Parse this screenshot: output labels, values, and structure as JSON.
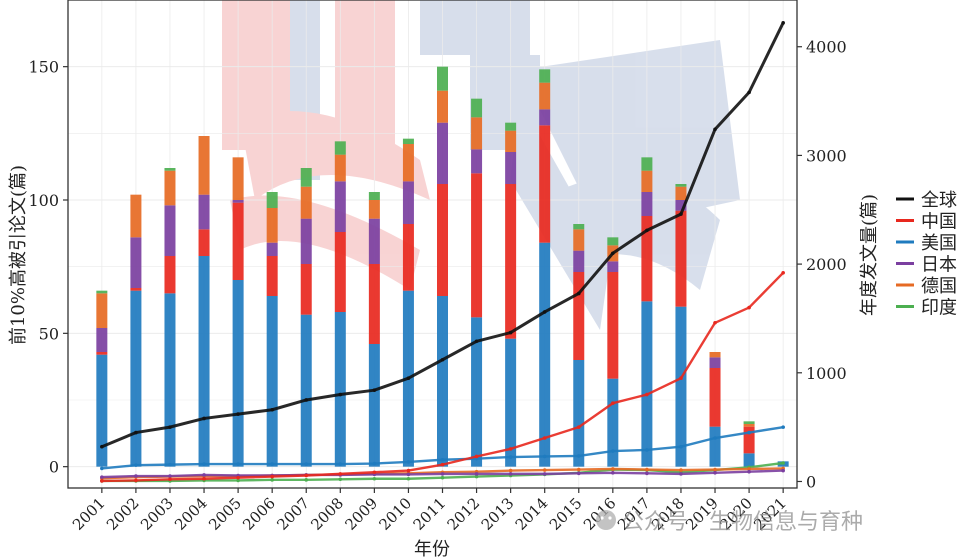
{
  "chart_data": {
    "type": "bar+line",
    "xlabel": "年份",
    "ylabel_left": "前10%高被引论文(篇)",
    "ylabel_right": "年度发文量(篇)",
    "ylim_left": [
      -8,
      175
    ],
    "ylim_right": [
      -60,
      4430
    ],
    "yticks_left": [
      0,
      50,
      100,
      150
    ],
    "yticks_right": [
      0,
      1000,
      2000,
      3000,
      4000
    ],
    "categories": [
      "2001",
      "2002",
      "2003",
      "2004",
      "2005",
      "2006",
      "2007",
      "2008",
      "2009",
      "2010",
      "2011",
      "2012",
      "2013",
      "2014",
      "2015",
      "2016",
      "2017",
      "2018",
      "2019",
      "2020",
      "2021"
    ],
    "legend_title": "",
    "series": [
      {
        "name": "全球",
        "color": "#111111",
        "bars": [
          0,
          0,
          0,
          0,
          0,
          0,
          0,
          0,
          0,
          0,
          0,
          0,
          0,
          0,
          0,
          0,
          0,
          0,
          0,
          0,
          0
        ],
        "line": [
          320,
          450,
          500,
          580,
          620,
          660,
          750,
          800,
          840,
          950,
          1120,
          1290,
          1370,
          1560,
          1730,
          2100,
          2310,
          2460,
          3240,
          3580,
          4220
        ]
      },
      {
        "name": "中国",
        "color": "#E8281E",
        "bars": [
          1,
          1,
          14,
          10,
          29,
          15,
          19,
          30,
          30,
          25,
          42,
          54,
          58,
          44,
          33,
          40,
          32,
          36,
          22,
          10,
          0
        ],
        "line": [
          5,
          10,
          20,
          25,
          35,
          45,
          55,
          70,
          85,
          100,
          155,
          230,
          300,
          400,
          500,
          720,
          800,
          950,
          1460,
          1600,
          1920
        ]
      },
      {
        "name": "美国",
        "color": "#1F7BBF",
        "bars": [
          42,
          66,
          65,
          79,
          70,
          64,
          57,
          58,
          46,
          66,
          64,
          56,
          48,
          84,
          40,
          33,
          62,
          60,
          15,
          5,
          2
        ],
        "line": [
          120,
          150,
          155,
          160,
          160,
          160,
          160,
          160,
          165,
          180,
          200,
          210,
          225,
          230,
          235,
          280,
          290,
          320,
          400,
          450,
          500
        ]
      },
      {
        "name": "日本",
        "color": "#7B3FA0",
        "bars": [
          9,
          19,
          19,
          13,
          1,
          5,
          17,
          19,
          17,
          16,
          23,
          9,
          12,
          6,
          8,
          4,
          9,
          4,
          4,
          0,
          0
        ],
        "line": [
          40,
          50,
          50,
          60,
          55,
          55,
          60,
          60,
          65,
          65,
          70,
          70,
          70,
          70,
          75,
          80,
          75,
          70,
          80,
          90,
          100
        ]
      },
      {
        "name": "德国",
        "color": "#E66A23",
        "bars": [
          13,
          16,
          13,
          22,
          16,
          13,
          12,
          10,
          7,
          14,
          12,
          12,
          8,
          10,
          8,
          6,
          8,
          5,
          2,
          1,
          0
        ],
        "line": [
          30,
          40,
          45,
          50,
          50,
          55,
          60,
          65,
          70,
          75,
          85,
          90,
          100,
          105,
          110,
          115,
          110,
          105,
          110,
          115,
          120
        ]
      },
      {
        "name": "印度",
        "color": "#4CAF50",
        "bars": [
          1,
          0,
          1,
          0,
          0,
          6,
          7,
          5,
          3,
          2,
          9,
          7,
          3,
          5,
          2,
          3,
          5,
          1,
          0,
          1,
          0
        ],
        "line": [
          5,
          5,
          5,
          10,
          10,
          15,
          15,
          20,
          25,
          25,
          35,
          45,
          55,
          65,
          80,
          110,
          105,
          85,
          105,
          130,
          170
        ]
      }
    ]
  },
  "watermark": {
    "text": "公众号 · 生物信息与育种"
  },
  "colors": {
    "watermark_red": "#F0A0A0",
    "watermark_blue": "#A8B8D4",
    "grid": "#EBEBEB",
    "axis": "#333333"
  }
}
